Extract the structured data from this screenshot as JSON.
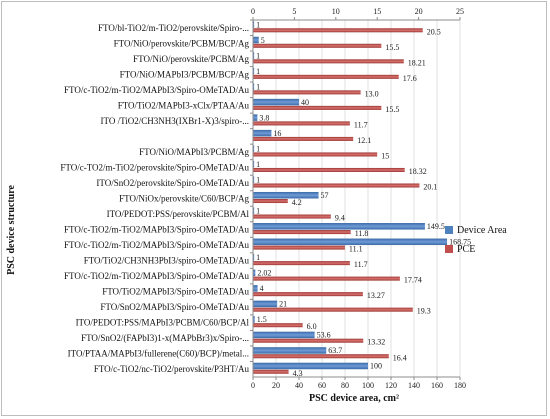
{
  "chart_data": {
    "type": "bar",
    "orientation": "horizontal",
    "categories": [
      "FTO/bl-TiO2/m-TiO2/perovskite/Spiro-...",
      "FTO/NiO/perovskite/PCBM/BCP/Ag",
      "FTO/NiO/perovskite/PCBM/Ag",
      "FTO/NiO/MAPbI3/PCBM/BCP/Ag",
      "FTO/c-TiO2/m-TiO2/MAPbI3/Spiro-OMeTAD/Au",
      "FTO/TiO2/MAPbI3-xClx/PTAA/Au",
      "ITO /TiO2/CH3NH3(IXBr1-X)3/spiro-...",
      "",
      "FTO/NiO/MAPbI3/PCBM/Ag",
      "FTO/c-TO2/m-TiO2/perovskite/Spiro-OMeTAD/Au",
      "ITO/SnO2/perovskite/Spiro-OMeTAD/Au",
      "FTO/NiOx/perovskite/C60/BCP/Ag",
      "ITO/PEDOT:PSS/perovskite/PCBM/Al",
      "FTO/c-TiO2/m-TiO2/MAPbI3/Spiro-OMeTAD/Au",
      "FTO/c-TiO2/m-TiO2/MAPbI3/Spiro-OMeTAD/Au",
      "FTO/TiO2/CH3NH3PbI3/spiro-OMeTAD/Au",
      "FTO/c-TiO2/m-TiO2/MAPbI3/Spiro-OMeTAD/Au",
      "FTO/TiO2/MAPbI3/Spiro-OMeTAD/Au",
      "FTO/SnO2/MAPbI3/Spiro-OMeTAD/Au",
      "ITO/PEDOT:PSS/MAPbI3/PCBM/C60/BCP/Al",
      "FTO/SnO2/(FAPbI3)1-x(MAPbBr3)x/Spiro-...",
      "ITO/PTAA/MAPbI3/fullerene(C60)/BCP)/metal...",
      "FTO/c-TiO2/nc-TiO2/perovskite/P3HT/Au"
    ],
    "series": [
      {
        "name": "Device Area",
        "axis": "bottom",
        "values": [
          1,
          5,
          1,
          1,
          1,
          40,
          3.8,
          16,
          1,
          1,
          1,
          57,
          1,
          149.5,
          168.75,
          1,
          2.02,
          4,
          21,
          1.5,
          53.6,
          63.7,
          100
        ],
        "labels": [
          "1",
          "5",
          "1",
          "1",
          "1",
          "40",
          "3.8",
          "16",
          "1",
          "1",
          "1",
          "57",
          "1",
          "149.5",
          "168.75",
          "1",
          "2.02",
          "4",
          "21",
          "1.5",
          "53.6",
          "63.7",
          "100"
        ],
        "color": "#4f81bd"
      },
      {
        "name": "PCE",
        "axis": "top",
        "values": [
          20.5,
          15.5,
          18.21,
          17.6,
          13.0,
          15.5,
          11.7,
          12.1,
          15,
          18.32,
          20.1,
          4.2,
          9.4,
          11.8,
          11.1,
          11.7,
          17.74,
          13.27,
          19.3,
          6.0,
          13.32,
          16.4,
          4.3
        ],
        "labels": [
          "20.5",
          "15.5",
          "18.21",
          "17.6",
          "13.0",
          "15.5",
          "11.7",
          "12.1",
          "15",
          "18.32",
          "20.1",
          "4.2",
          "9.4",
          "11.8",
          "11.1",
          "11.7",
          "17.74",
          "13.27",
          "19.3",
          "6.0",
          "13.32",
          "16.4",
          "4.3"
        ],
        "color": "#c0504d"
      }
    ],
    "xlim_bottom": [
      0,
      180
    ],
    "xticks_bottom": [
      0,
      20,
      40,
      60,
      80,
      100,
      120,
      140,
      160,
      180
    ],
    "xlim_top": [
      0,
      25
    ],
    "xticks_top": [
      0,
      5,
      10,
      15,
      20,
      25
    ],
    "xlabel": "PSC device area, cm²",
    "ylabel": "PSC device structure",
    "legend_position": "right",
    "grid": true
  }
}
